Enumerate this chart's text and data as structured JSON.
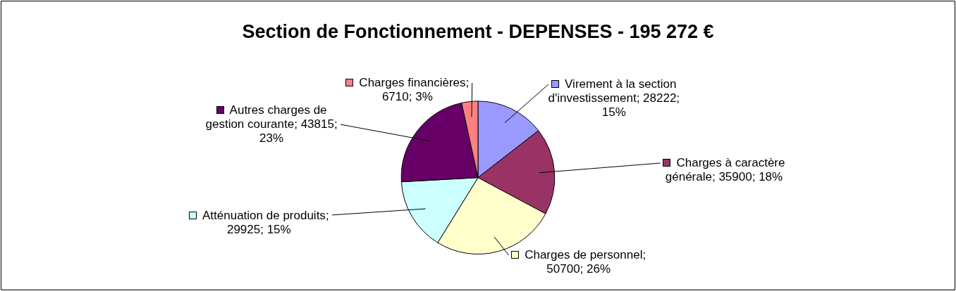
{
  "chart_data": {
    "type": "pie",
    "title": "Section de Fonctionnement - DEPENSES - 195 272 €",
    "categories": [
      "Virement à la section d'investissement",
      "Charges à caractère générale",
      "Charges de personnel",
      "Atténuation de produits",
      "Autres charges de gestion courante",
      "Charges financières"
    ],
    "values": [
      28222,
      35900,
      50700,
      29925,
      43815,
      6710
    ],
    "value_labels": [
      "; 28222; 15%",
      "; 35900; 18%",
      "; 50700; 26%",
      "; 29925; 15%",
      "; 43815; 23%",
      "; 6710; 3%"
    ],
    "legend": "right",
    "colors": [
      "#9999ff",
      "#993366",
      "#ffffcc",
      "#ccffff",
      "#660066",
      "#ff8080"
    ]
  }
}
